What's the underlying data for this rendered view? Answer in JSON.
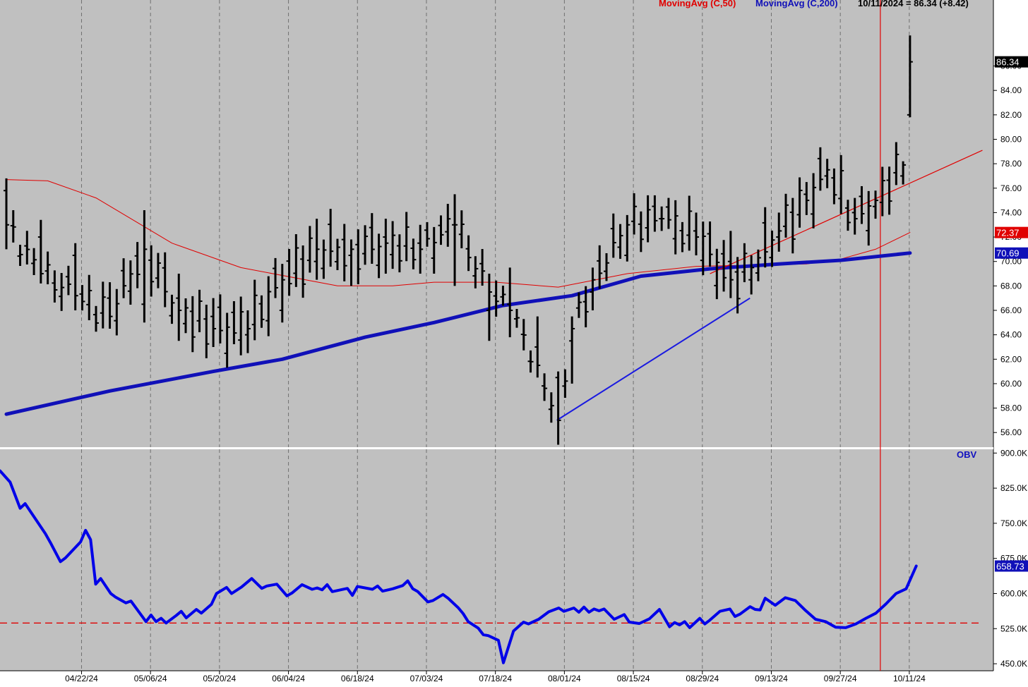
{
  "chart_data": [
    {
      "type": "bar",
      "panel": "price",
      "title": "",
      "xlabel": "",
      "ylabel": "",
      "ylim": [
        54.8,
        91.4
      ],
      "yticks": [
        "56.00",
        "58.00",
        "60.00",
        "62.00",
        "64.00",
        "66.00",
        "68.00",
        "70.00",
        "72.00",
        "74.00",
        "76.00",
        "78.00",
        "80.00",
        "82.00",
        "84.00",
        "86.00"
      ],
      "grid": true,
      "legend": [
        {
          "label": "MovingAvg (C,50)",
          "color": "#e00000"
        },
        {
          "label": "MovingAvg (C,200)",
          "color": "#1010b8"
        },
        {
          "label": "10/11/2024 = 86.34 (+8.42)",
          "color": "#000000"
        }
      ],
      "value_tags": [
        {
          "text": "86.34",
          "value": 86.34,
          "bg": "#000000"
        },
        {
          "text": "72.37",
          "value": 72.37,
          "bg": "#e00000"
        },
        {
          "text": "70.69",
          "value": 70.69,
          "bg": "#1010b8"
        }
      ],
      "x_labels": [
        "04/22/24",
        "05/06/24",
        "05/20/24",
        "06/04/24",
        "06/18/24",
        "07/03/24",
        "07/18/24",
        "08/01/24",
        "08/15/24",
        "08/29/24",
        "09/13/24",
        "09/27/24",
        "10/11/24"
      ],
      "label_index": [
        11,
        21,
        31,
        41,
        51,
        61,
        71,
        81,
        91,
        101,
        111,
        121,
        131
      ],
      "num_bars": 132,
      "ohlc_keys": [
        [
          0,
          75.8,
          76.8,
          71.0,
          73.0
        ],
        [
          5,
          72.0,
          73.4,
          68.2,
          69.0
        ],
        [
          10,
          70.5,
          71.5,
          66.0,
          67.2
        ],
        [
          15,
          67.0,
          68.3,
          64.5,
          65.5
        ],
        [
          20,
          66.5,
          74.2,
          65.0,
          71.0
        ],
        [
          25,
          67.0,
          69.0,
          63.5,
          66.0
        ],
        [
          30,
          65.5,
          67.0,
          63.0,
          64.5
        ],
        [
          35,
          64.0,
          66.0,
          62.5,
          64.5
        ],
        [
          40,
          66.0,
          69.8,
          65.0,
          68.5
        ],
        [
          45,
          70.0,
          73.5,
          68.5,
          71.0
        ],
        [
          50,
          70.5,
          71.8,
          68.0,
          71.0
        ],
        [
          55,
          72.0,
          73.5,
          69.0,
          71.5
        ],
        [
          60,
          71.5,
          73.0,
          69.0,
          71.0
        ],
        [
          65,
          73.0,
          75.5,
          68.0,
          73.0
        ],
        [
          70,
          66.0,
          69.0,
          63.5,
          67.5
        ],
        [
          73,
          66.5,
          69.5,
          63.8,
          66.0
        ],
        [
          77,
          63.0,
          65.5,
          60.5,
          61.5
        ],
        [
          80,
          60.5,
          61.0,
          55.0,
          57.0
        ],
        [
          82,
          63.5,
          65.5,
          60.0,
          64.5
        ],
        [
          85,
          67.5,
          69.5,
          66.0,
          68.5
        ],
        [
          90,
          70.5,
          73.8,
          70.0,
          73.0
        ],
        [
          95,
          73.5,
          74.5,
          72.5,
          73.5
        ],
        [
          100,
          72.5,
          74.0,
          70.5,
          72.0
        ],
        [
          105,
          70.0,
          72.5,
          67.0,
          68.5
        ],
        [
          108,
          68.5,
          70.5,
          67.3,
          69.5
        ],
        [
          112,
          72.0,
          74.0,
          70.8,
          72.5
        ],
        [
          116,
          75.5,
          76.5,
          73.8,
          75.0
        ],
        [
          119,
          77.0,
          78.4,
          76.0,
          77.5
        ],
        [
          123,
          74.0,
          75.2,
          72.2,
          73.5
        ],
        [
          126,
          74.5,
          75.8,
          73.5,
          75.0
        ],
        [
          130,
          77.0,
          78.2,
          76.3,
          77.9
        ],
        [
          131,
          82.0,
          88.5,
          81.8,
          86.34
        ]
      ],
      "series": [
        {
          "name": "MovingAvg (C,50)",
          "color": "#e00000",
          "width": 1,
          "points": [
            [
              0,
              76.7
            ],
            [
              6,
              76.6
            ],
            [
              13,
              75.2
            ],
            [
              24,
              71.5
            ],
            [
              34,
              69.5
            ],
            [
              48,
              68.0
            ],
            [
              56,
              68.0
            ],
            [
              62,
              68.3
            ],
            [
              71,
              68.3
            ],
            [
              80,
              67.9
            ],
            [
              90,
              69.0
            ],
            [
              100,
              69.6
            ],
            [
              108,
              69.7
            ],
            [
              116,
              69.8
            ],
            [
              121,
              70.2
            ],
            [
              126,
              71.0
            ],
            [
              131,
              72.37
            ]
          ]
        },
        {
          "name": "MovingAvg (C,200)",
          "color": "#1010b8",
          "width": 5,
          "points": [
            [
              0,
              57.5
            ],
            [
              15,
              59.4
            ],
            [
              30,
              61.0
            ],
            [
              40,
              62.0
            ],
            [
              52,
              63.8
            ],
            [
              62,
              65.0
            ],
            [
              72,
              66.4
            ],
            [
              82,
              67.2
            ],
            [
              92,
              68.8
            ],
            [
              102,
              69.4
            ],
            [
              112,
              69.8
            ],
            [
              121,
              70.1
            ],
            [
              131,
              70.69
            ]
          ]
        }
      ],
      "trendlines": [
        {
          "color": "#1a1ae0",
          "width": 2,
          "from": [
            79.8,
            57.0
          ],
          "to": [
            107.8,
            67.0
          ]
        },
        {
          "color": "#e00000",
          "width": 1.2,
          "from": [
            102.0,
            69.0
          ],
          "to": [
            141.5,
            79.1
          ]
        }
      ],
      "vline_index": 126.7
    },
    {
      "type": "line",
      "panel": "indicator",
      "title": "OBV",
      "ylim": [
        435,
        908
      ],
      "yticks": [
        "450.0K",
        "525.0K",
        "600.0K",
        "675.0K",
        "750.0K",
        "825.0K",
        "900.0K"
      ],
      "reference_line": 537,
      "value_tags": [
        {
          "text": "658.73",
          "value": 658.73,
          "bg": "#1010b8"
        }
      ],
      "series": [
        {
          "name": "OBV",
          "color": "#0000e8",
          "width": 4,
          "points": [
            [
              0,
              862
            ],
            [
              2,
              838
            ],
            [
              4,
              782
            ],
            [
              5,
              792
            ],
            [
              7,
              760
            ],
            [
              9,
              728
            ],
            [
              10,
              709
            ],
            [
              12,
              668
            ],
            [
              13,
              676
            ],
            [
              16,
              710
            ],
            [
              17,
              735
            ],
            [
              18,
              715
            ],
            [
              19,
              620
            ],
            [
              20,
              632
            ],
            [
              22,
              600
            ],
            [
              23,
              592
            ],
            [
              25,
              580
            ],
            [
              26,
              584
            ],
            [
              29,
              540
            ],
            [
              30,
              554
            ],
            [
              31,
              540
            ],
            [
              32,
              547
            ],
            [
              33,
              537
            ],
            [
              35,
              553
            ],
            [
              36,
              562
            ],
            [
              37,
              548
            ],
            [
              39,
              566
            ],
            [
              40,
              558
            ],
            [
              42,
              577
            ],
            [
              43,
              600
            ],
            [
              45,
              613
            ],
            [
              46,
              600
            ],
            [
              48,
              614
            ],
            [
              50,
              632
            ],
            [
              52,
              611
            ],
            [
              53,
              616
            ],
            [
              55,
              620
            ],
            [
              57,
              595
            ],
            [
              58,
              601
            ],
            [
              60,
              619
            ],
            [
              62,
              609
            ],
            [
              63,
              612
            ],
            [
              64,
              608
            ],
            [
              65,
              619
            ],
            [
              66,
              604
            ],
            [
              69,
              611
            ],
            [
              70,
              596
            ],
            [
              71,
              615
            ],
            [
              74,
              609
            ],
            [
              75,
              616
            ],
            [
              76,
              605
            ],
            [
              78,
              610
            ],
            [
              80,
              617
            ],
            [
              81,
              627
            ],
            [
              82,
              610
            ],
            [
              83,
              604
            ],
            [
              85,
              582
            ],
            [
              86,
              585
            ],
            [
              88,
              598
            ],
            [
              89,
              590
            ],
            [
              91,
              570
            ],
            [
              92,
              557
            ],
            [
              93,
              540
            ],
            [
              95,
              526
            ],
            [
              96,
              512
            ],
            [
              97,
              510
            ],
            [
              99,
              500
            ],
            [
              100,
              452
            ],
            [
              102,
              520
            ],
            [
              104,
              539
            ],
            [
              105,
              535
            ],
            [
              107,
              545
            ],
            [
              109,
              561
            ],
            [
              111,
              569
            ],
            [
              112,
              562
            ],
            [
              114,
              569
            ],
            [
              115,
              560
            ],
            [
              116,
              571
            ],
            [
              117,
              560
            ],
            [
              118,
              567
            ],
            [
              119,
              563
            ],
            [
              120,
              567
            ],
            [
              122,
              545
            ],
            [
              124,
              555
            ],
            [
              125,
              539
            ],
            [
              127,
              536
            ],
            [
              129,
              546
            ],
            [
              131,
              566
            ],
            [
              133,
              529
            ],
            [
              134,
              538
            ],
            [
              135,
              533
            ],
            [
              136,
              540
            ],
            [
              137,
              527
            ],
            [
              139,
              547
            ],
            [
              140,
              535
            ],
            [
              141,
              543
            ],
            [
              143,
              562
            ],
            [
              145,
              567
            ],
            [
              146,
              551
            ],
            [
              147,
              556
            ],
            [
              149,
              572
            ],
            [
              150,
              566
            ],
            [
              151,
              565
            ],
            [
              152,
              590
            ],
            [
              154,
              575
            ],
            [
              156,
              591
            ],
            [
              158,
              585
            ],
            [
              160,
              564
            ],
            [
              162,
              545
            ],
            [
              164,
              540
            ],
            [
              166,
              528
            ],
            [
              168,
              527
            ],
            [
              170,
              535
            ],
            [
              172,
              547
            ],
            [
              174,
              558
            ],
            [
              176,
              578
            ],
            [
              178,
              600
            ],
            [
              180,
              610
            ],
            [
              182,
              658.73
            ]
          ]
        }
      ]
    }
  ]
}
